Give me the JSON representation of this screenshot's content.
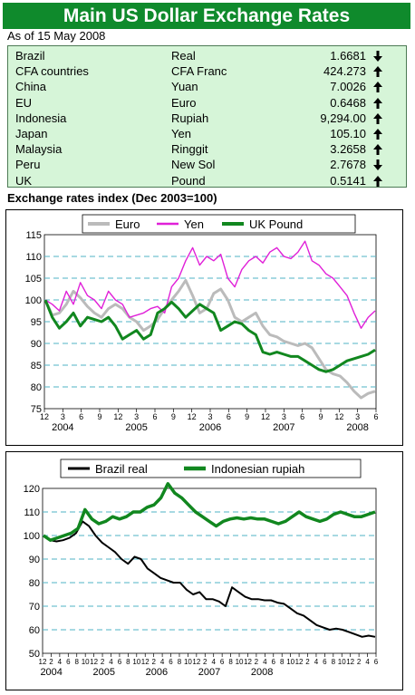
{
  "title": "Main US Dollar Exchange Rates",
  "as_of": "As of 15 May 2008",
  "rates": [
    {
      "country": "Brazil",
      "currency": "Real",
      "rate": "1.6681",
      "trend": "down"
    },
    {
      "country": "CFA countries",
      "currency": "CFA Franc",
      "rate": "424.273",
      "trend": "up"
    },
    {
      "country": "China",
      "currency": "Yuan",
      "rate": "7.0026",
      "trend": "up"
    },
    {
      "country": "EU",
      "currency": "Euro",
      "rate": "0.6468",
      "trend": "up"
    },
    {
      "country": "Indonesia",
      "currency": "Rupiah",
      "rate": "9,294.00",
      "trend": "up"
    },
    {
      "country": "Japan",
      "currency": "Yen",
      "rate": "105.10",
      "trend": "up"
    },
    {
      "country": "Malaysia",
      "currency": "Ringgit",
      "rate": "3.2658",
      "trend": "up"
    },
    {
      "country": "Peru",
      "currency": "New Sol",
      "rate": "2.7678",
      "trend": "down"
    },
    {
      "country": "UK",
      "currency": "Pound",
      "rate": "0.5141",
      "trend": "up"
    }
  ],
  "section_title": "Exchange rates index (Dec 2003=100)",
  "chart_data": [
    {
      "type": "line",
      "ylim": [
        75,
        115
      ],
      "yticks": [
        75,
        80,
        85,
        90,
        95,
        100,
        105,
        110,
        115
      ],
      "grid": true,
      "legend": "top",
      "x_month_labels": [
        "12",
        "3",
        "6",
        "9",
        "12",
        "3",
        "6",
        "9",
        "12",
        "3",
        "6",
        "9",
        "12",
        "3",
        "6",
        "9",
        "12",
        "3",
        "6"
      ],
      "x_year_labels": [
        "2004",
        "2005",
        "2006",
        "2007",
        "2008"
      ],
      "series": [
        {
          "name": "Euro",
          "color": "#bbbbbb",
          "values": [
            100,
            96.5,
            97,
            99,
            102,
            100.5,
            98.5,
            97,
            96,
            98,
            99,
            98,
            96,
            95,
            93,
            94,
            95.5,
            98,
            100,
            102,
            104.5,
            101,
            97,
            98,
            101.5,
            102.5,
            100,
            96,
            95,
            96,
            97,
            94,
            92,
            91.5,
            90.5,
            90,
            89.5,
            90,
            89,
            86.5,
            84,
            83,
            82.5,
            81,
            79,
            77.5,
            78.5,
            79
          ]
        },
        {
          "name": "Yen",
          "color": "#e020d8",
          "values": [
            100,
            99,
            97.5,
            102,
            99,
            104,
            101,
            100,
            98,
            102,
            100,
            99,
            96,
            96.5,
            97,
            98,
            98.5,
            97,
            103,
            105,
            109,
            112,
            108,
            110,
            109,
            110.5,
            105,
            103,
            107,
            109,
            110,
            108.5,
            111,
            112,
            110,
            109.5,
            111,
            113.5,
            109,
            108,
            106,
            105,
            103,
            101,
            97,
            93.5,
            96,
            97.5
          ]
        },
        {
          "name": "UK Pound",
          "color": "#11871f",
          "values": [
            100,
            96,
            93.5,
            95,
            97,
            94,
            96,
            95.5,
            95,
            96,
            94,
            91,
            92,
            93,
            91,
            92,
            97,
            98,
            99.5,
            98,
            96,
            97.5,
            99,
            98,
            97,
            93,
            94,
            95,
            94.5,
            93,
            92,
            88,
            87.5,
            88,
            87.5,
            87,
            87,
            86,
            85,
            84,
            83.5,
            84,
            85,
            86,
            86.5,
            87,
            87.5,
            88.5
          ]
        }
      ]
    },
    {
      "type": "line",
      "ylim": [
        50,
        120
      ],
      "yticks": [
        50,
        60,
        70,
        80,
        90,
        100,
        110,
        120
      ],
      "grid": true,
      "legend": "top",
      "x_month_labels": [
        "12",
        "2",
        "4",
        "6",
        "8",
        "10",
        "12",
        "2",
        "4",
        "6",
        "8",
        "10",
        "12",
        "2",
        "4",
        "6",
        "8",
        "10",
        "12",
        "2",
        "4",
        "6",
        "8",
        "10",
        "12",
        "2",
        "4",
        "6",
        "8",
        "10",
        "12",
        "2",
        "4",
        "6",
        "8",
        "10",
        "12",
        "2",
        "4",
        "6"
      ],
      "x_year_labels": [
        "2004",
        "2005",
        "2006",
        "2007",
        "2008"
      ],
      "series": [
        {
          "name": "Brazil real",
          "color": "#000000",
          "values": [
            100,
            98,
            97.5,
            98,
            99,
            101,
            106,
            104,
            100,
            97,
            95,
            93,
            90,
            88,
            91,
            90,
            86,
            84,
            82,
            81,
            80,
            80,
            77,
            75,
            76,
            73,
            73,
            72,
            70,
            78,
            76,
            74,
            73,
            73,
            72.5,
            72.5,
            71.5,
            71,
            69,
            67,
            66,
            64,
            62,
            61,
            60,
            60.5,
            60,
            59,
            58,
            57,
            57.5,
            57
          ]
        },
        {
          "name": "Indonesian rupiah",
          "color": "#11871f",
          "values": [
            100,
            98,
            99,
            100,
            101,
            103,
            111,
            107,
            105,
            106,
            108,
            107,
            108,
            110,
            110,
            112,
            113,
            116,
            122,
            118,
            116,
            113,
            110,
            108,
            106,
            104,
            106,
            107,
            107.5,
            107,
            107.5,
            107,
            107,
            106,
            105,
            106,
            108,
            110,
            108,
            107,
            106,
            107,
            109,
            110,
            109,
            108,
            108,
            109,
            110
          ]
        }
      ]
    }
  ],
  "icons": {
    "up": "arrow-up-icon",
    "down": "arrow-down-icon"
  }
}
